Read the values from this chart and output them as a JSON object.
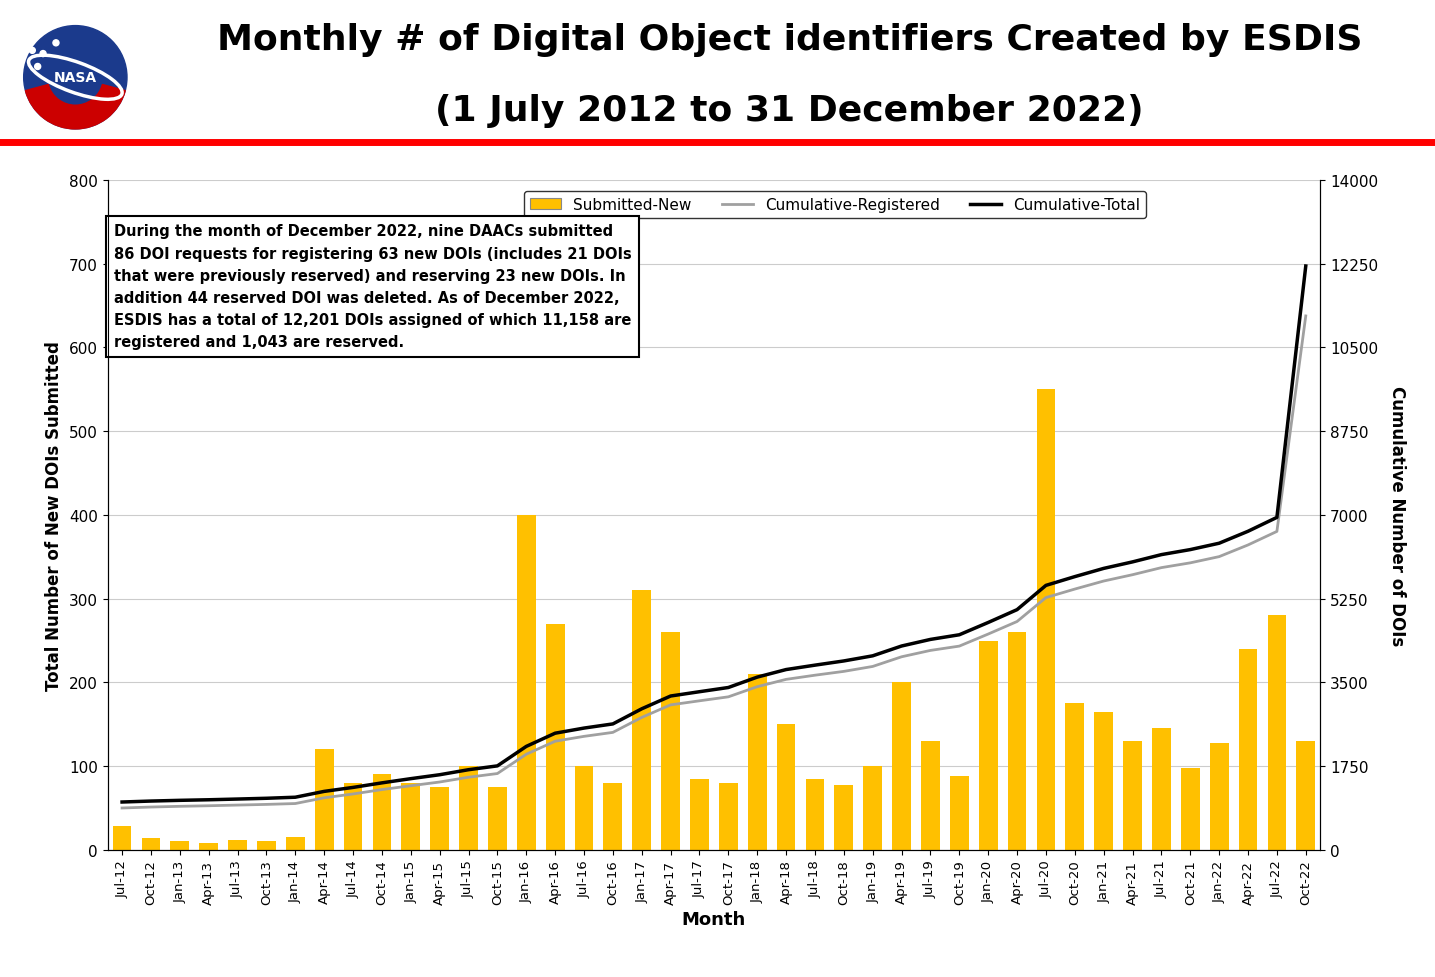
{
  "title_line1": "Monthly # of Digital Object identifiers Created by ESDIS",
  "title_line2": "(1 July 2012 to 31 December 2022)",
  "ylabel_left": "Total Number of New DOIs Submitted",
  "ylabel_right": "Cumulative Number of DOIs",
  "xlabel": "Month",
  "ylim_left": [
    0,
    800
  ],
  "ylim_right": [
    0,
    14000
  ],
  "yticks_left": [
    0,
    100,
    200,
    300,
    400,
    500,
    600,
    700,
    800
  ],
  "yticks_right": [
    0,
    1750,
    3500,
    5250,
    7000,
    8750,
    10500,
    12250,
    14000
  ],
  "bar_color": "#FFC000",
  "line_registered_color": "#A0A0A0",
  "line_total_color": "#000000",
  "annotation_text": "During the month of December 2022, nine DAACs submitted\n86 DOI requests for registering 63 new DOIs (includes 21 DOIs\nthat were previously reserved) and reserving 23 new DOIs. In\naddition 44 reserved DOI was deleted. As of December 2022,\nESDIS has a total of 12,201 DOIs assigned of which 11,158 are\nregistered and 1,043 are reserved.",
  "tick_labels": [
    "Jul-12",
    "Oct-12",
    "Jan-13",
    "Apr-13",
    "Jul-13",
    "Oct-13",
    "Jan-14",
    "Apr-14",
    "Jul-14",
    "Oct-14",
    "Jan-15",
    "Apr-15",
    "Jul-15",
    "Oct-15",
    "Jan-16",
    "Apr-16",
    "Jul-16",
    "Oct-16",
    "Jan-17",
    "Apr-17",
    "Jul-17",
    "Oct-17",
    "Jan-18",
    "Apr-18",
    "Jul-18",
    "Oct-18",
    "Jan-19",
    "Apr-19",
    "Jul-19",
    "Oct-19",
    "Jan-20",
    "Apr-20",
    "Jul-20",
    "Oct-20",
    "Jan-21",
    "Apr-21",
    "Jul-21",
    "Oct-21",
    "Jan-22",
    "Apr-22",
    "Jul-22",
    "Oct-22"
  ],
  "monthly_new": [
    28,
    14,
    10,
    8,
    12,
    10,
    15,
    120,
    80,
    90,
    80,
    75,
    100,
    75,
    400,
    270,
    100,
    80,
    310,
    260,
    85,
    80,
    210,
    150,
    85,
    78,
    100,
    200,
    130,
    88,
    250,
    260,
    550,
    175,
    165,
    130,
    145,
    98,
    128,
    240,
    280,
    130
  ],
  "cumulative_registered": [
    875,
    895,
    910,
    922,
    936,
    950,
    968,
    1088,
    1168,
    1260,
    1340,
    1418,
    1518,
    1595,
    1998,
    2270,
    2372,
    2455,
    2768,
    3030,
    3115,
    3198,
    3410,
    3563,
    3650,
    3730,
    3833,
    4035,
    4168,
    4258,
    4510,
    4772,
    5272,
    5450,
    5618,
    5750,
    5898,
    5998,
    6128,
    6372,
    6655,
    11158
  ],
  "cumulative_total": [
    1000,
    1020,
    1035,
    1047,
    1062,
    1078,
    1100,
    1222,
    1305,
    1400,
    1488,
    1570,
    1675,
    1755,
    2162,
    2438,
    2545,
    2632,
    2948,
    3215,
    3305,
    3393,
    3610,
    3768,
    3860,
    3948,
    4055,
    4260,
    4398,
    4495,
    4752,
    5020,
    5527,
    5710,
    5882,
    6018,
    6170,
    6275,
    6408,
    6658,
    6948,
    12201
  ],
  "background_color": "#ffffff",
  "grid_color": "#cccccc",
  "red_line_color": "#FF0000",
  "legend_labels": [
    "Submitted-New",
    "Cumulative-Registered",
    "Cumulative-Total"
  ]
}
